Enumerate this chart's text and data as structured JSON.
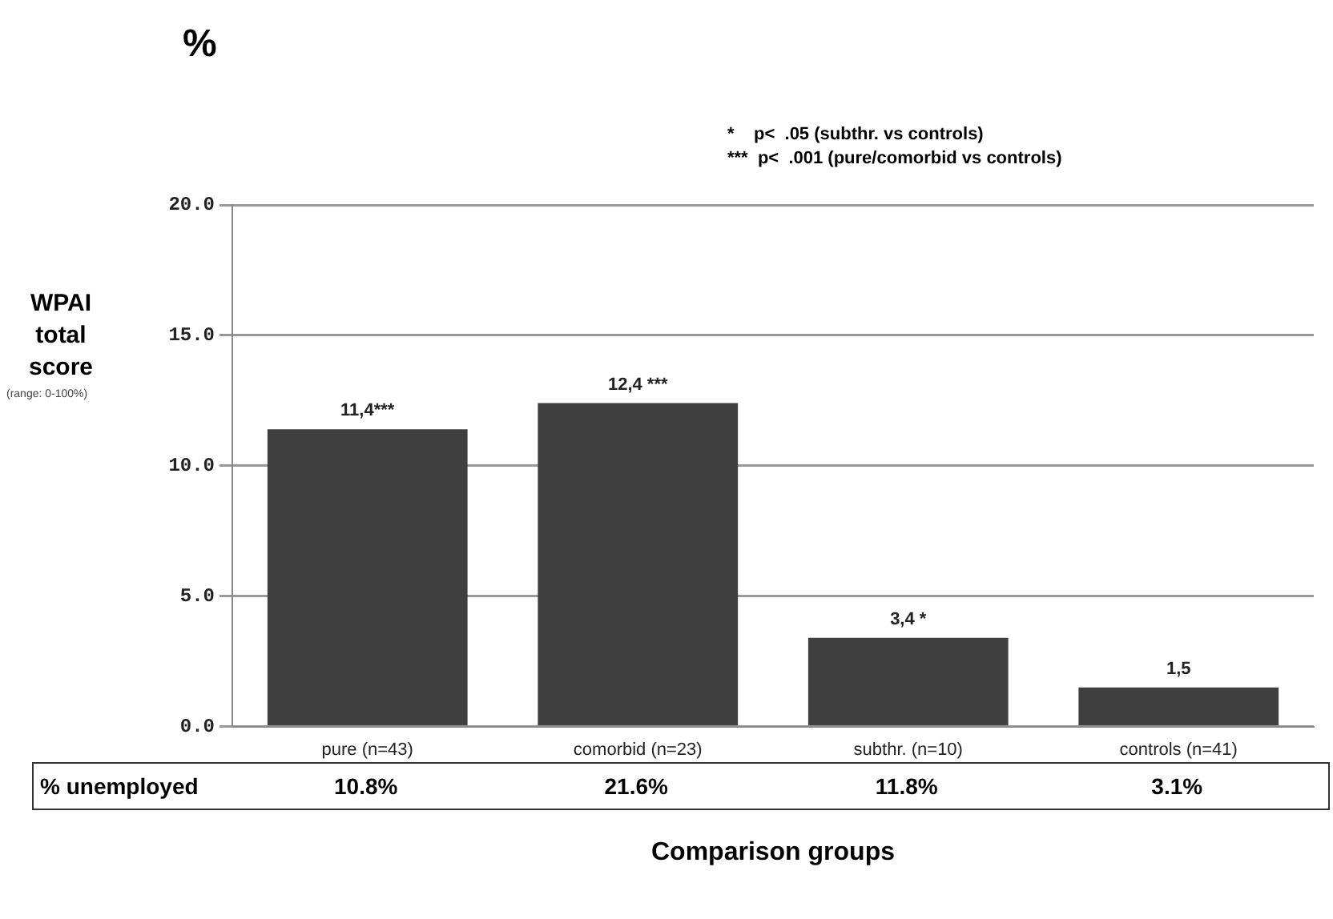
{
  "chart_data": {
    "type": "bar",
    "ylabel": "WPAI total score",
    "xlabel": "Comparison groups",
    "categories": [
      "pure (n=43)",
      "comorbid (n=23)",
      "subthr. (n=10)",
      "controls (n=41)"
    ],
    "values": [
      11.4,
      12.4,
      3.4,
      1.5
    ],
    "color": "#3f3f3f",
    "value_labels": [
      "11,4***",
      "12,4 ***",
      "3,4 *",
      "1,5"
    ],
    "ylim": [
      0,
      20
    ],
    "yticks": [
      {
        "value": 0,
        "label": "0.0"
      },
      {
        "value": 5,
        "label": "5.0"
      },
      {
        "value": 10,
        "label": "10.0"
      },
      {
        "value": 15,
        "label": "15.0"
      },
      {
        "value": 20,
        "label": "20.0"
      }
    ],
    "grid": "y",
    "legend": false,
    "annotations": [
      "*    p<  .05 (subthr. vs controls)",
      "***  p<  .001 (pure/comorbid vs controls)",
      "%",
      "(range: 0-100%)",
      "% unemployed",
      "10.8%",
      "21.6%",
      "11.8%",
      "3.1%"
    ]
  }
}
